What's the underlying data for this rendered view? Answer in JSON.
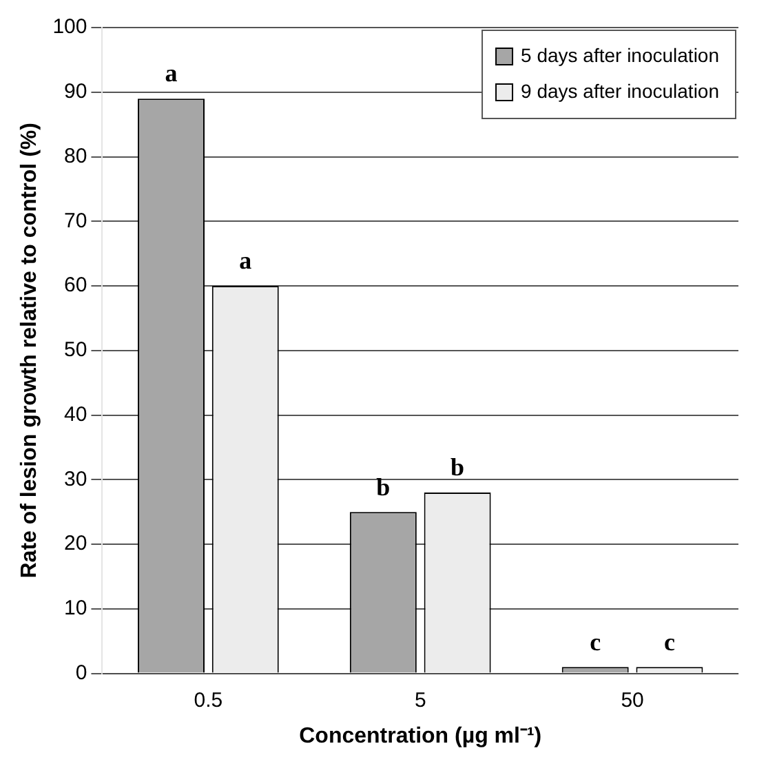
{
  "chart_data": {
    "type": "bar",
    "xlabel": "Concentration (µg ml⁻¹)",
    "ylabel": "Rate of lesion growth relative to control (%)",
    "categories": [
      "0.5",
      "5",
      "50"
    ],
    "series": [
      {
        "name": "5 days after inoculation",
        "color": "#a6a6a6",
        "values": [
          89,
          25,
          1
        ]
      },
      {
        "name": "9 days after inoculation",
        "color": "#ececec",
        "values": [
          60,
          28,
          1
        ]
      }
    ],
    "ylim": [
      0,
      100
    ],
    "yticks": [
      0,
      10,
      20,
      30,
      40,
      50,
      60,
      70,
      80,
      90,
      100
    ],
    "grid": "y",
    "legend": "top right",
    "annotations": [
      {
        "text": "a",
        "x": "0.5",
        "y": 89
      },
      {
        "text": "a",
        "x": "0.5",
        "y": 60
      },
      {
        "text": "b",
        "x": "5",
        "y": 25
      },
      {
        "text": "b",
        "x": "5",
        "y": 28
      },
      {
        "text": "c",
        "x": "50",
        "y": 1
      },
      {
        "text": "c",
        "x": "50",
        "y": 1
      }
    ]
  }
}
